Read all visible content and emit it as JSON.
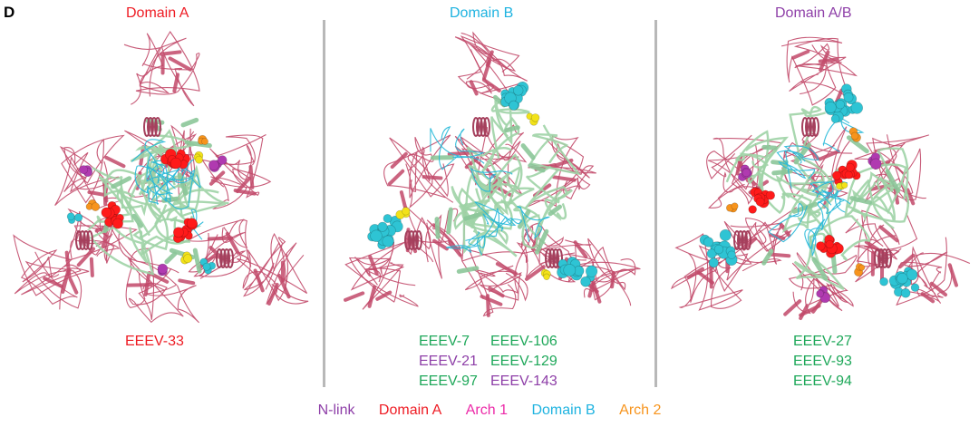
{
  "panel_letter": "D",
  "panels": [
    {
      "title": "Domain A",
      "color": "#ee1c24",
      "antibodies": [
        "EEEV-33"
      ]
    },
    {
      "title": "Domain B",
      "color": "#1eb3e0",
      "antibodies": [
        {
          "label": "EEEV-7",
          "color": "#1fa85a"
        },
        {
          "label": "EEEV-106",
          "color": "#1fa85a"
        },
        {
          "label": "EEEV-21",
          "color": "#8e3fa8"
        },
        {
          "label": "EEEV-129",
          "color": "#1fa85a"
        },
        {
          "label": "EEEV-97",
          "color": "#1fa85a"
        },
        {
          "label": "EEEV-143",
          "color": "#8e3fa8"
        }
      ]
    },
    {
      "title": "Domain A/B",
      "color": "#8e3fa8",
      "antibodies": [
        "EEEV-27",
        "EEEV-93",
        "EEEV-94"
      ]
    }
  ],
  "legend": [
    {
      "label": "N-link",
      "color": "#8e3fa8"
    },
    {
      "label": "Domain A",
      "color": "#ee1c24"
    },
    {
      "label": "Arch 1",
      "color": "#ec2aa8"
    },
    {
      "label": "Domain B",
      "color": "#1eb3e0"
    },
    {
      "label": "Arch 2",
      "color": "#f7941d"
    }
  ],
  "colors": {
    "ribbon_outer": "#c24a6a",
    "ribbon_inner": "#9fd3a6",
    "cyan_sticks": "#24b8d8",
    "sphere_red": "#ff1a1a",
    "sphere_cyan": "#2ec4d4",
    "sphere_yellow": "#f2e21a",
    "sphere_orange": "#f7941d",
    "sphere_purple": "#b03ab0"
  }
}
